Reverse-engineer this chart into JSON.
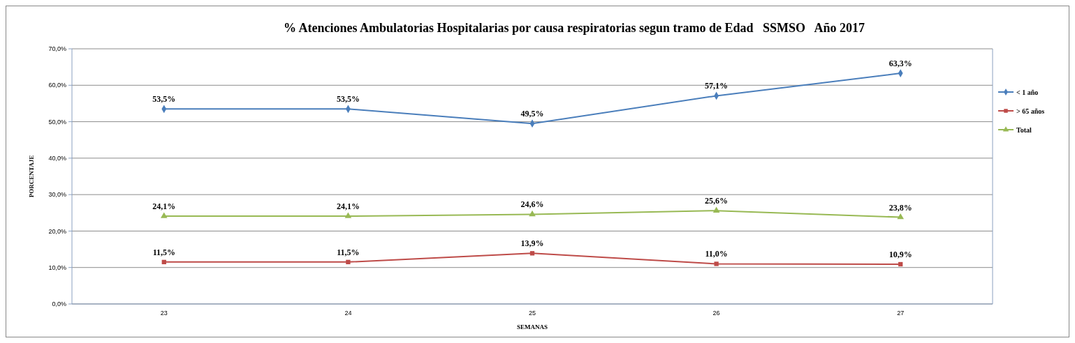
{
  "chart_data": {
    "type": "line",
    "title": "% Atenciones Ambulatorias Hospitalarias por causa respiratorias segun tramo de Edad   SSMSO   Año 2017",
    "xlabel": "SEMANAS",
    "ylabel": "PORCENTAJE",
    "categories": [
      "23",
      "24",
      "25",
      "26",
      "27"
    ],
    "series": [
      {
        "name": "< 1 año",
        "color": "#4a7ebb",
        "marker": "diamond",
        "values": [
          53.5,
          53.5,
          49.5,
          57.1,
          63.3
        ],
        "value_labels": [
          "53,5%",
          "53,5%",
          "49,5%",
          "57,1%",
          "63,3%"
        ]
      },
      {
        "name": "> 65 años",
        "color": "#be4b48",
        "marker": "square",
        "values": [
          11.5,
          11.5,
          13.9,
          11.0,
          10.9
        ],
        "value_labels": [
          "11,5%",
          "11,5%",
          "13,9%",
          "11,0%",
          "10,9%"
        ]
      },
      {
        "name": "Total",
        "color": "#98b954",
        "marker": "triangle",
        "values": [
          24.1,
          24.1,
          24.6,
          25.6,
          23.8
        ],
        "value_labels": [
          "24,1%",
          "24,1%",
          "24,6%",
          "25,6%",
          "23,8%"
        ]
      }
    ],
    "ylim": [
      0,
      70
    ],
    "yticks": [
      {
        "value": 0,
        "label": "0,0%"
      },
      {
        "value": 10,
        "label": "10,0%"
      },
      {
        "value": 20,
        "label": "20,0%"
      },
      {
        "value": 30,
        "label": "30,0%"
      },
      {
        "value": 40,
        "label": "40,0%"
      },
      {
        "value": 50,
        "label": "50,0%"
      },
      {
        "value": 60,
        "label": "60,0%"
      },
      {
        "value": 70,
        "label": "70,0%"
      }
    ],
    "grid": "y",
    "legend": "right"
  }
}
